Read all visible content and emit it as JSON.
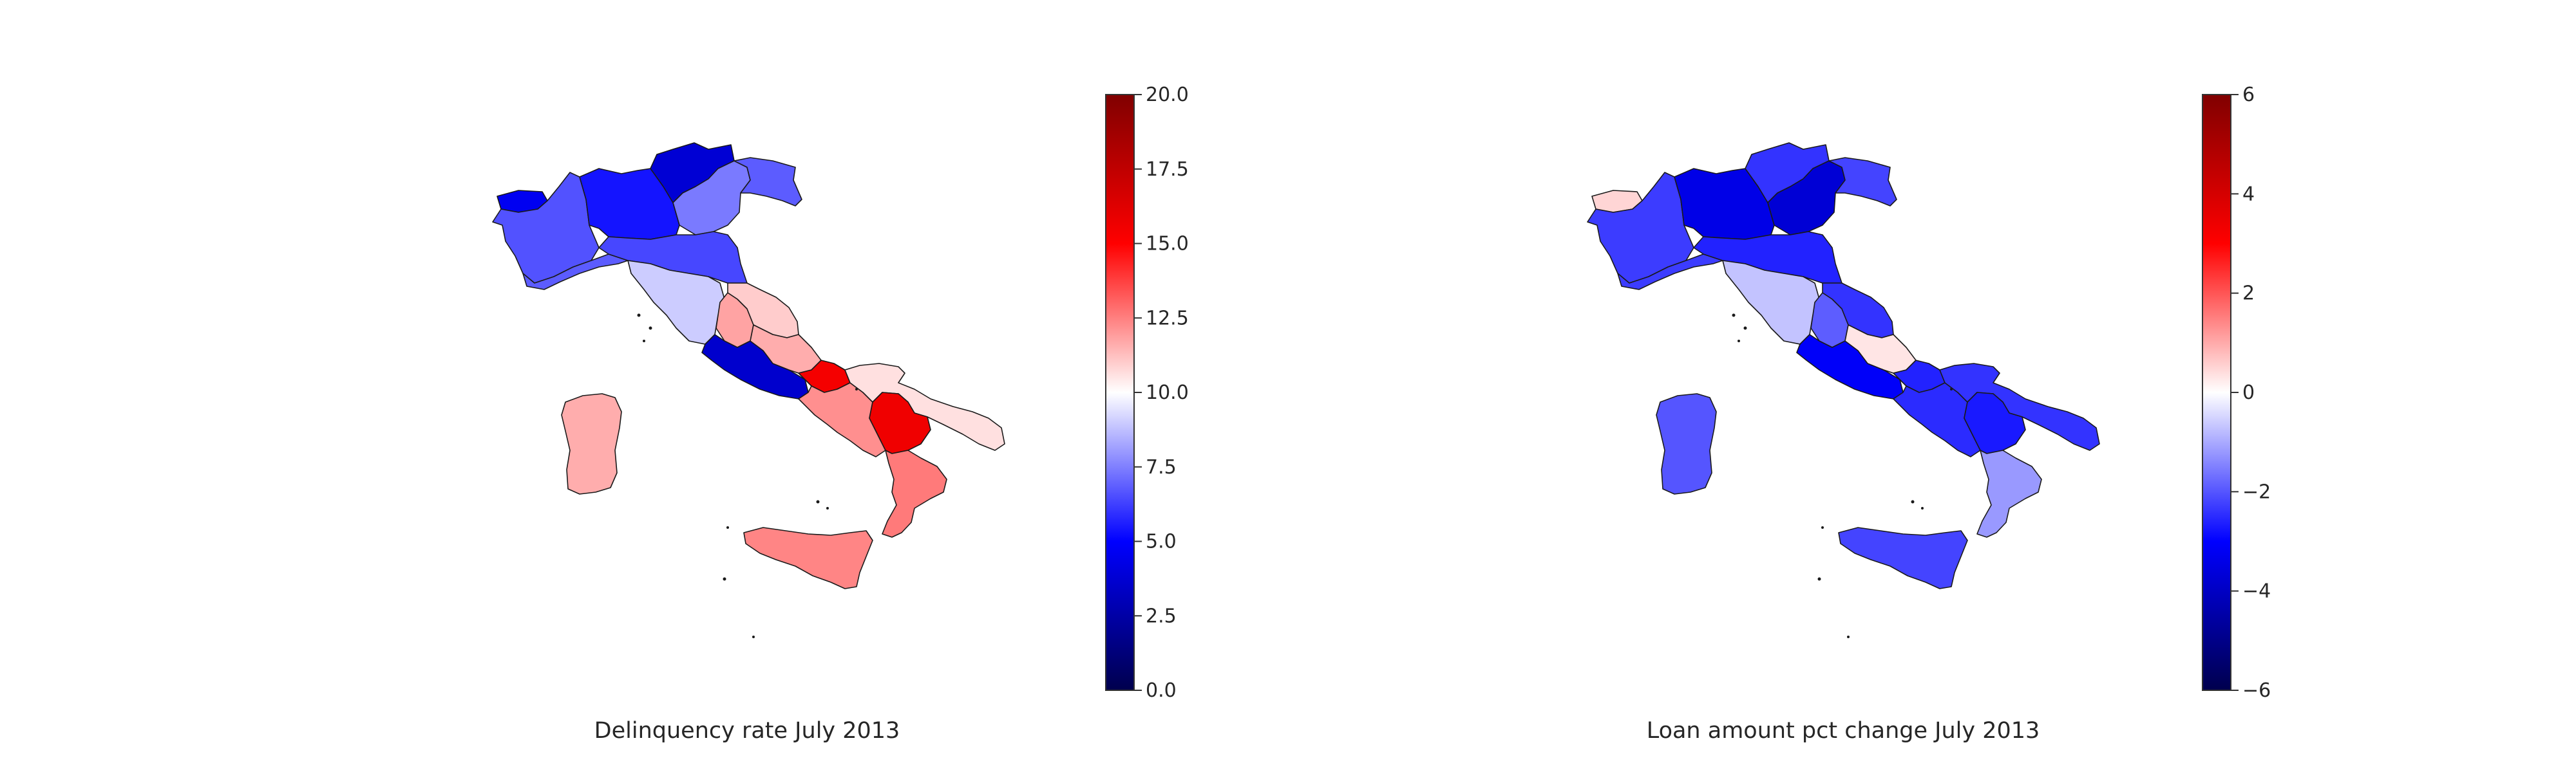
{
  "chart_data": [
    {
      "type": "choropleth",
      "title": "Delinquency rate July 2013",
      "colormap": "seismic",
      "colorbar": {
        "vmin": 0,
        "vmax": 20,
        "ticks": [
          "0.0",
          "2.5",
          "5.0",
          "7.5",
          "10.0",
          "12.5",
          "15.0",
          "17.5",
          "20.0"
        ]
      },
      "regions": [
        {
          "name": "Valle d'Aosta",
          "value": 4.6
        },
        {
          "name": "Piemonte",
          "value": 6.6
        },
        {
          "name": "Lombardia",
          "value": 5.4
        },
        {
          "name": "Trentino-Alto Adige",
          "value": 3.8
        },
        {
          "name": "Veneto",
          "value": 7.4
        },
        {
          "name": "Friuli-Venezia Giulia",
          "value": 6.8
        },
        {
          "name": "Liguria",
          "value": 6.8
        },
        {
          "name": "Emilia-Romagna",
          "value": 6.4
        },
        {
          "name": "Toscana",
          "value": 9.0
        },
        {
          "name": "Umbria",
          "value": 11.8
        },
        {
          "name": "Marche",
          "value": 11.0
        },
        {
          "name": "Lazio",
          "value": 3.6
        },
        {
          "name": "Abruzzo",
          "value": 11.6
        },
        {
          "name": "Molise",
          "value": 15.4
        },
        {
          "name": "Campania",
          "value": 12.2
        },
        {
          "name": "Puglia",
          "value": 10.6
        },
        {
          "name": "Basilicata",
          "value": 15.6
        },
        {
          "name": "Calabria",
          "value": 12.6
        },
        {
          "name": "Sicilia",
          "value": 12.4
        },
        {
          "name": "Sardegna",
          "value": 11.6
        }
      ]
    },
    {
      "type": "choropleth",
      "title": "Loan amount pct change July 2013",
      "colormap": "seismic",
      "colorbar": {
        "vmin": -6,
        "vmax": 6,
        "ticks": [
          "−6",
          "−4",
          "−2",
          "0",
          "2",
          "4",
          "6"
        ]
      },
      "regions": [
        {
          "name": "Valle d'Aosta",
          "value": 0.5
        },
        {
          "name": "Piemonte",
          "value": -2.3
        },
        {
          "name": "Lombardia",
          "value": -3.4
        },
        {
          "name": "Trentino-Alto Adige",
          "value": -2.4
        },
        {
          "name": "Veneto",
          "value": -3.7
        },
        {
          "name": "Friuli-Venezia Giulia",
          "value": -2.2
        },
        {
          "name": "Liguria",
          "value": -2.3
        },
        {
          "name": "Emilia-Romagna",
          "value": -2.6
        },
        {
          "name": "Toscana",
          "value": -0.7
        },
        {
          "name": "Umbria",
          "value": -1.9
        },
        {
          "name": "Marche",
          "value": -2.4
        },
        {
          "name": "Lazio",
          "value": -3.1
        },
        {
          "name": "Abruzzo",
          "value": 0.3
        },
        {
          "name": "Molise",
          "value": -2.6
        },
        {
          "name": "Campania",
          "value": -2.5
        },
        {
          "name": "Puglia",
          "value": -2.4
        },
        {
          "name": "Basilicata",
          "value": -2.7
        },
        {
          "name": "Calabria",
          "value": -1.2
        },
        {
          "name": "Sicilia",
          "value": -2.2
        },
        {
          "name": "Sardegna",
          "value": -2.0
        }
      ]
    }
  ]
}
